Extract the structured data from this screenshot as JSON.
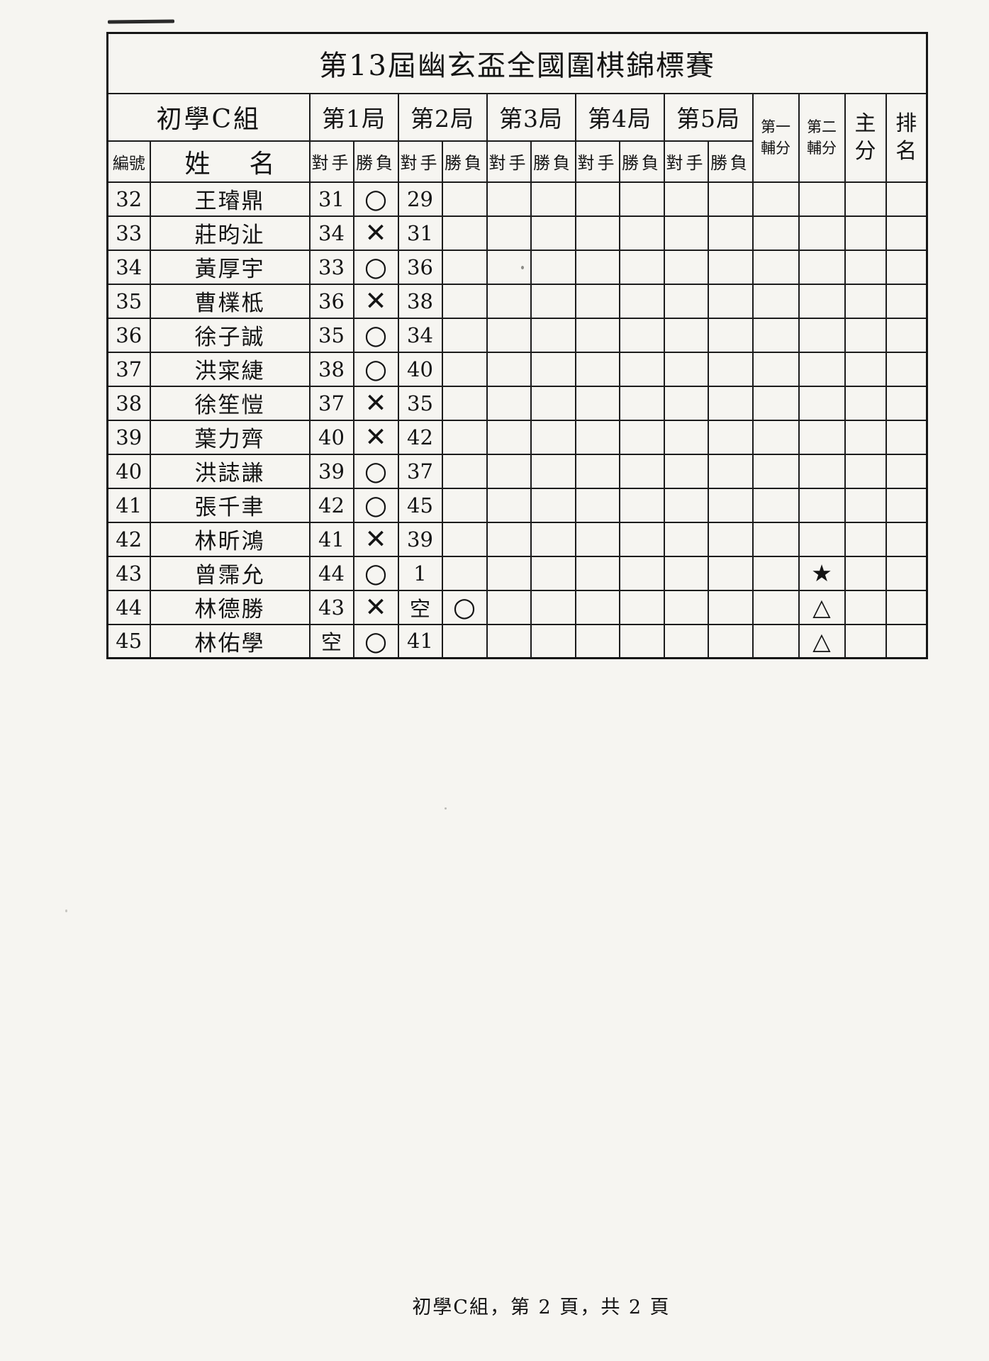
{
  "page": {
    "title": "第13屆幽玄盃全國圍棋錦標賽",
    "footer": "初學C組，第 2 頁，共 2 頁"
  },
  "header": {
    "group": "初學C組",
    "rounds": [
      "第1局",
      "第2局",
      "第3局",
      "第4局",
      "第5局"
    ],
    "id_label": "編號",
    "name_label_left": "姓",
    "name_label_right": "名",
    "opponent_label": "對手",
    "result_label": "勝負",
    "aux1": [
      "第一",
      "輔分"
    ],
    "aux2": [
      "第二",
      "輔分"
    ],
    "main_score": [
      "主",
      "分"
    ],
    "rank": [
      "排",
      "名"
    ]
  },
  "rows": [
    {
      "id": "32",
      "name": "王璿鼎",
      "rounds": [
        [
          "31",
          "○"
        ],
        [
          "29",
          ""
        ],
        [
          "",
          ""
        ],
        [
          "",
          ""
        ],
        [
          "",
          ""
        ]
      ],
      "aux1": "",
      "aux2": "",
      "main": "",
      "rank": ""
    },
    {
      "id": "33",
      "name": "莊昀沚",
      "rounds": [
        [
          "34",
          "✕"
        ],
        [
          "31",
          ""
        ],
        [
          "",
          ""
        ],
        [
          "",
          ""
        ],
        [
          "",
          ""
        ]
      ],
      "aux1": "",
      "aux2": "",
      "main": "",
      "rank": ""
    },
    {
      "id": "34",
      "name": "黃厚宇",
      "rounds": [
        [
          "33",
          "○"
        ],
        [
          "36",
          ""
        ],
        [
          "",
          ""
        ],
        [
          "",
          ""
        ],
        [
          "",
          ""
        ]
      ],
      "aux1": "",
      "aux2": "",
      "main": "",
      "rank": ""
    },
    {
      "id": "35",
      "name": "曹檏柢",
      "rounds": [
        [
          "36",
          "✕"
        ],
        [
          "38",
          ""
        ],
        [
          "",
          ""
        ],
        [
          "",
          ""
        ],
        [
          "",
          ""
        ]
      ],
      "aux1": "",
      "aux2": "",
      "main": "",
      "rank": ""
    },
    {
      "id": "36",
      "name": "徐子誠",
      "rounds": [
        [
          "35",
          "○"
        ],
        [
          "34",
          ""
        ],
        [
          "",
          ""
        ],
        [
          "",
          ""
        ],
        [
          "",
          ""
        ]
      ],
      "aux1": "",
      "aux2": "",
      "main": "",
      "rank": ""
    },
    {
      "id": "37",
      "name": "洪寀緁",
      "rounds": [
        [
          "38",
          "○"
        ],
        [
          "40",
          ""
        ],
        [
          "",
          ""
        ],
        [
          "",
          ""
        ],
        [
          "",
          ""
        ]
      ],
      "aux1": "",
      "aux2": "",
      "main": "",
      "rank": ""
    },
    {
      "id": "38",
      "name": "徐笙愷",
      "rounds": [
        [
          "37",
          "✕"
        ],
        [
          "35",
          ""
        ],
        [
          "",
          ""
        ],
        [
          "",
          ""
        ],
        [
          "",
          ""
        ]
      ],
      "aux1": "",
      "aux2": "",
      "main": "",
      "rank": ""
    },
    {
      "id": "39",
      "name": "葉力齊",
      "rounds": [
        [
          "40",
          "✕"
        ],
        [
          "42",
          ""
        ],
        [
          "",
          ""
        ],
        [
          "",
          ""
        ],
        [
          "",
          ""
        ]
      ],
      "aux1": "",
      "aux2": "",
      "main": "",
      "rank": ""
    },
    {
      "id": "40",
      "name": "洪誌謙",
      "rounds": [
        [
          "39",
          "○"
        ],
        [
          "37",
          ""
        ],
        [
          "",
          ""
        ],
        [
          "",
          ""
        ],
        [
          "",
          ""
        ]
      ],
      "aux1": "",
      "aux2": "",
      "main": "",
      "rank": ""
    },
    {
      "id": "41",
      "name": "張千聿",
      "rounds": [
        [
          "42",
          "○"
        ],
        [
          "45",
          ""
        ],
        [
          "",
          ""
        ],
        [
          "",
          ""
        ],
        [
          "",
          ""
        ]
      ],
      "aux1": "",
      "aux2": "",
      "main": "",
      "rank": ""
    },
    {
      "id": "42",
      "name": "林昕鴻",
      "rounds": [
        [
          "41",
          "✕"
        ],
        [
          "39",
          ""
        ],
        [
          "",
          ""
        ],
        [
          "",
          ""
        ],
        [
          "",
          ""
        ]
      ],
      "aux1": "",
      "aux2": "",
      "main": "",
      "rank": ""
    },
    {
      "id": "43",
      "name": "曾霈允",
      "rounds": [
        [
          "44",
          "○"
        ],
        [
          "1",
          ""
        ],
        [
          "",
          ""
        ],
        [
          "",
          ""
        ],
        [
          "",
          ""
        ]
      ],
      "aux1": "",
      "aux2": "★",
      "main": "",
      "rank": ""
    },
    {
      "id": "44",
      "name": "林德勝",
      "rounds": [
        [
          "43",
          "✕"
        ],
        [
          "空",
          "○"
        ],
        [
          "",
          ""
        ],
        [
          "",
          ""
        ],
        [
          "",
          ""
        ]
      ],
      "aux1": "",
      "aux2": "△",
      "main": "",
      "rank": ""
    },
    {
      "id": "45",
      "name": "林佑學",
      "rounds": [
        [
          "空",
          "○"
        ],
        [
          "41",
          ""
        ],
        [
          "",
          ""
        ],
        [
          "",
          ""
        ],
        [
          "",
          ""
        ]
      ],
      "aux1": "",
      "aux2": "△",
      "main": "",
      "rank": ""
    }
  ]
}
